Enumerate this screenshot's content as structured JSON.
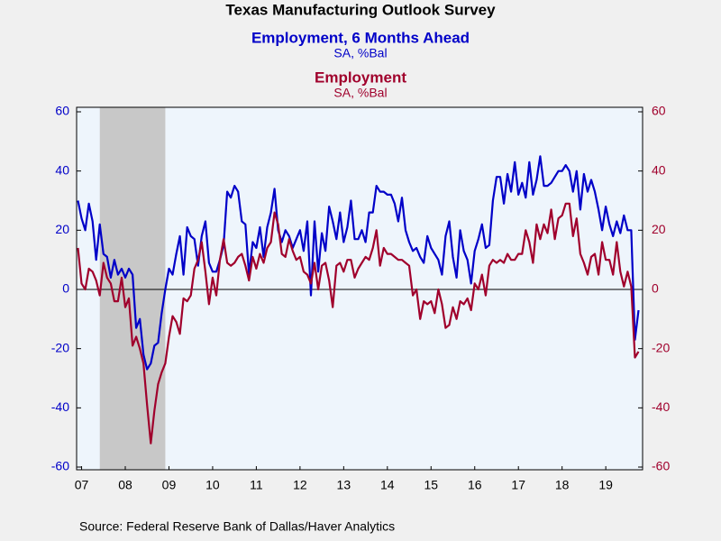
{
  "chart_data": {
    "type": "line",
    "title": "Texas Manufacturing Outlook Survey",
    "source": "Source:  Federal Reserve Bank of Dallas/Haver Analytics",
    "x": [
      "2007-06",
      "2007-07",
      "2007-08",
      "2007-09",
      "2007-10",
      "2007-11",
      "2007-12",
      "2008-01",
      "2008-02",
      "2008-03",
      "2008-04",
      "2008-05",
      "2008-06",
      "2008-07",
      "2008-08",
      "2008-09",
      "2008-10",
      "2008-11",
      "2008-12",
      "2009-01",
      "2009-02",
      "2009-03",
      "2009-04",
      "2009-05",
      "2009-06",
      "2009-07",
      "2009-08",
      "2009-09",
      "2009-10",
      "2009-11",
      "2009-12",
      "2010-01",
      "2010-02",
      "2010-03",
      "2010-04",
      "2010-05",
      "2010-06",
      "2010-07",
      "2010-08",
      "2010-09",
      "2010-10",
      "2010-11",
      "2010-12",
      "2011-01",
      "2011-02",
      "2011-03",
      "2011-04",
      "2011-05",
      "2011-06",
      "2011-07",
      "2011-08",
      "2011-09",
      "2011-10",
      "2011-11",
      "2011-12",
      "2012-01",
      "2012-02",
      "2012-03",
      "2012-04",
      "2012-05",
      "2012-06",
      "2012-07",
      "2012-08",
      "2012-09",
      "2012-10",
      "2012-11",
      "2012-12",
      "2013-01",
      "2013-02",
      "2013-03",
      "2013-04",
      "2013-05",
      "2013-06",
      "2013-07",
      "2013-08",
      "2013-09",
      "2013-10",
      "2013-11",
      "2013-12",
      "2014-01",
      "2014-02",
      "2014-03",
      "2014-04",
      "2014-05",
      "2014-06",
      "2014-07",
      "2014-08",
      "2014-09",
      "2014-10",
      "2014-11",
      "2014-12",
      "2015-01",
      "2015-02",
      "2015-03",
      "2015-04",
      "2015-05",
      "2015-06",
      "2015-07",
      "2015-08",
      "2015-09",
      "2015-10",
      "2015-11",
      "2015-12",
      "2016-01",
      "2016-02",
      "2016-03",
      "2016-04",
      "2016-05",
      "2016-06",
      "2016-07",
      "2016-08",
      "2016-09",
      "2016-10",
      "2016-11",
      "2016-12",
      "2017-01",
      "2017-02",
      "2017-03",
      "2017-04",
      "2017-05",
      "2017-06",
      "2017-07",
      "2017-08",
      "2017-09",
      "2017-10",
      "2017-11",
      "2017-12",
      "2018-01",
      "2018-02",
      "2018-03",
      "2018-04",
      "2018-05",
      "2018-06",
      "2018-07",
      "2018-08",
      "2018-09",
      "2018-10",
      "2018-11",
      "2018-12",
      "2019-01",
      "2019-02",
      "2019-03",
      "2019-04",
      "2019-05",
      "2019-06",
      "2019-07",
      "2019-08",
      "2019-09",
      "2019-10",
      "2019-11",
      "2019-12",
      "2020-01",
      "2020-02",
      "2020-03",
      "2020-04"
    ],
    "series": [
      {
        "name": "Employment, 6 Months Ahead",
        "unit": "SA, %Bal",
        "color": "#0000c8",
        "axis": "y",
        "values": [
          30,
          24,
          20,
          29,
          23,
          10,
          22,
          12,
          11,
          4,
          10,
          5,
          7,
          4,
          7,
          5,
          -13,
          -10,
          -22,
          -27,
          -25,
          -19,
          -18,
          -8,
          0,
          7,
          5,
          12,
          18,
          5,
          21,
          18,
          17,
          8,
          18,
          23,
          9,
          6,
          6,
          10,
          15,
          33,
          31,
          35,
          33,
          23,
          22,
          5,
          16,
          14,
          21,
          11,
          21,
          26,
          34,
          20,
          16,
          20,
          18,
          14,
          17,
          20,
          13,
          23,
          -2,
          23,
          6,
          19,
          13,
          28,
          23,
          17,
          26,
          16,
          21,
          30,
          17,
          17,
          20,
          16,
          26,
          26,
          35,
          33,
          33,
          32,
          32,
          29,
          23,
          31,
          20,
          16,
          13,
          14,
          11,
          9,
          18,
          14,
          12,
          10,
          5,
          18,
          23,
          11,
          4,
          20,
          13,
          10,
          2,
          13,
          17,
          22,
          14,
          15,
          30,
          38,
          38,
          29,
          39,
          33,
          43,
          32,
          36,
          31,
          43,
          32,
          37,
          45,
          35,
          35,
          36,
          38,
          40,
          40,
          42,
          40,
          33,
          40,
          27,
          39,
          33,
          37,
          33,
          27,
          20,
          28,
          22,
          18,
          23,
          19,
          25,
          20,
          20,
          -17,
          -7
        ]
      },
      {
        "name": "Employment",
        "unit": "SA, %Bal",
        "color": "#a0002c",
        "axis": "y2",
        "values": [
          14,
          2,
          0,
          7,
          6,
          3,
          -2,
          9,
          4,
          2,
          -4,
          -4,
          4,
          -6,
          -3,
          -19,
          -16,
          -20,
          -25,
          -39,
          -52,
          -41,
          -32,
          -28,
          -25,
          -16,
          -9,
          -11,
          -15,
          -3,
          -4,
          -2,
          7,
          10,
          16,
          6,
          -5,
          4,
          -2,
          10,
          17,
          9,
          8,
          9,
          11,
          12,
          8,
          3,
          11,
          7,
          12,
          9,
          14,
          16,
          26,
          22,
          12,
          11,
          17,
          13,
          10,
          11,
          6,
          5,
          2,
          9,
          0,
          8,
          9,
          3,
          -6,
          8,
          9,
          6,
          10,
          10,
          4,
          7,
          9,
          11,
          10,
          14,
          20,
          8,
          14,
          12,
          12,
          11,
          10,
          10,
          9,
          8,
          -2,
          0,
          -10,
          -4,
          -5,
          -4,
          -8,
          0,
          -5,
          -13,
          -12,
          -6,
          -10,
          -4,
          -5,
          -3,
          -7,
          2,
          0,
          5,
          -2,
          8,
          10,
          9,
          10,
          9,
          12,
          10,
          10,
          12,
          12,
          20,
          16,
          9,
          22,
          17,
          22,
          19,
          27,
          17,
          24,
          25,
          29,
          29,
          18,
          24,
          12,
          9,
          5,
          11,
          12,
          5,
          16,
          10,
          10,
          5,
          16,
          6,
          1,
          6,
          1,
          -23,
          -21
        ]
      }
    ],
    "xlim": [
      "2007-06",
      "2020-04"
    ],
    "xticks": [
      {
        "value": "2007-07",
        "label": "07"
      },
      {
        "value": "2008-07",
        "label": "08"
      },
      {
        "value": "2009-07",
        "label": "09"
      },
      {
        "value": "2010-07",
        "label": "10"
      },
      {
        "value": "2011-07",
        "label": "11"
      },
      {
        "value": "2012-07",
        "label": "12"
      },
      {
        "value": "2013-07",
        "label": "13"
      },
      {
        "value": "2014-07",
        "label": "14"
      },
      {
        "value": "2015-07",
        "label": "15"
      },
      {
        "value": "2016-07",
        "label": "16"
      },
      {
        "value": "2017-07",
        "label": "17"
      },
      {
        "value": "2018-07",
        "label": "18"
      },
      {
        "value": "2019-07",
        "label": "19"
      }
    ],
    "ylim": [
      -60,
      60
    ],
    "yticks": [
      -60,
      -40,
      -20,
      0,
      20,
      40,
      60
    ],
    "y2lim": [
      -60,
      60
    ],
    "y2ticks": [
      -60,
      -40,
      -20,
      0,
      20,
      40,
      60
    ],
    "shaded_periods": [
      {
        "start": "2007-12",
        "end": "2009-06"
      }
    ],
    "shade_color": "#c8c8c8",
    "plot_background": "#eef5fc"
  }
}
